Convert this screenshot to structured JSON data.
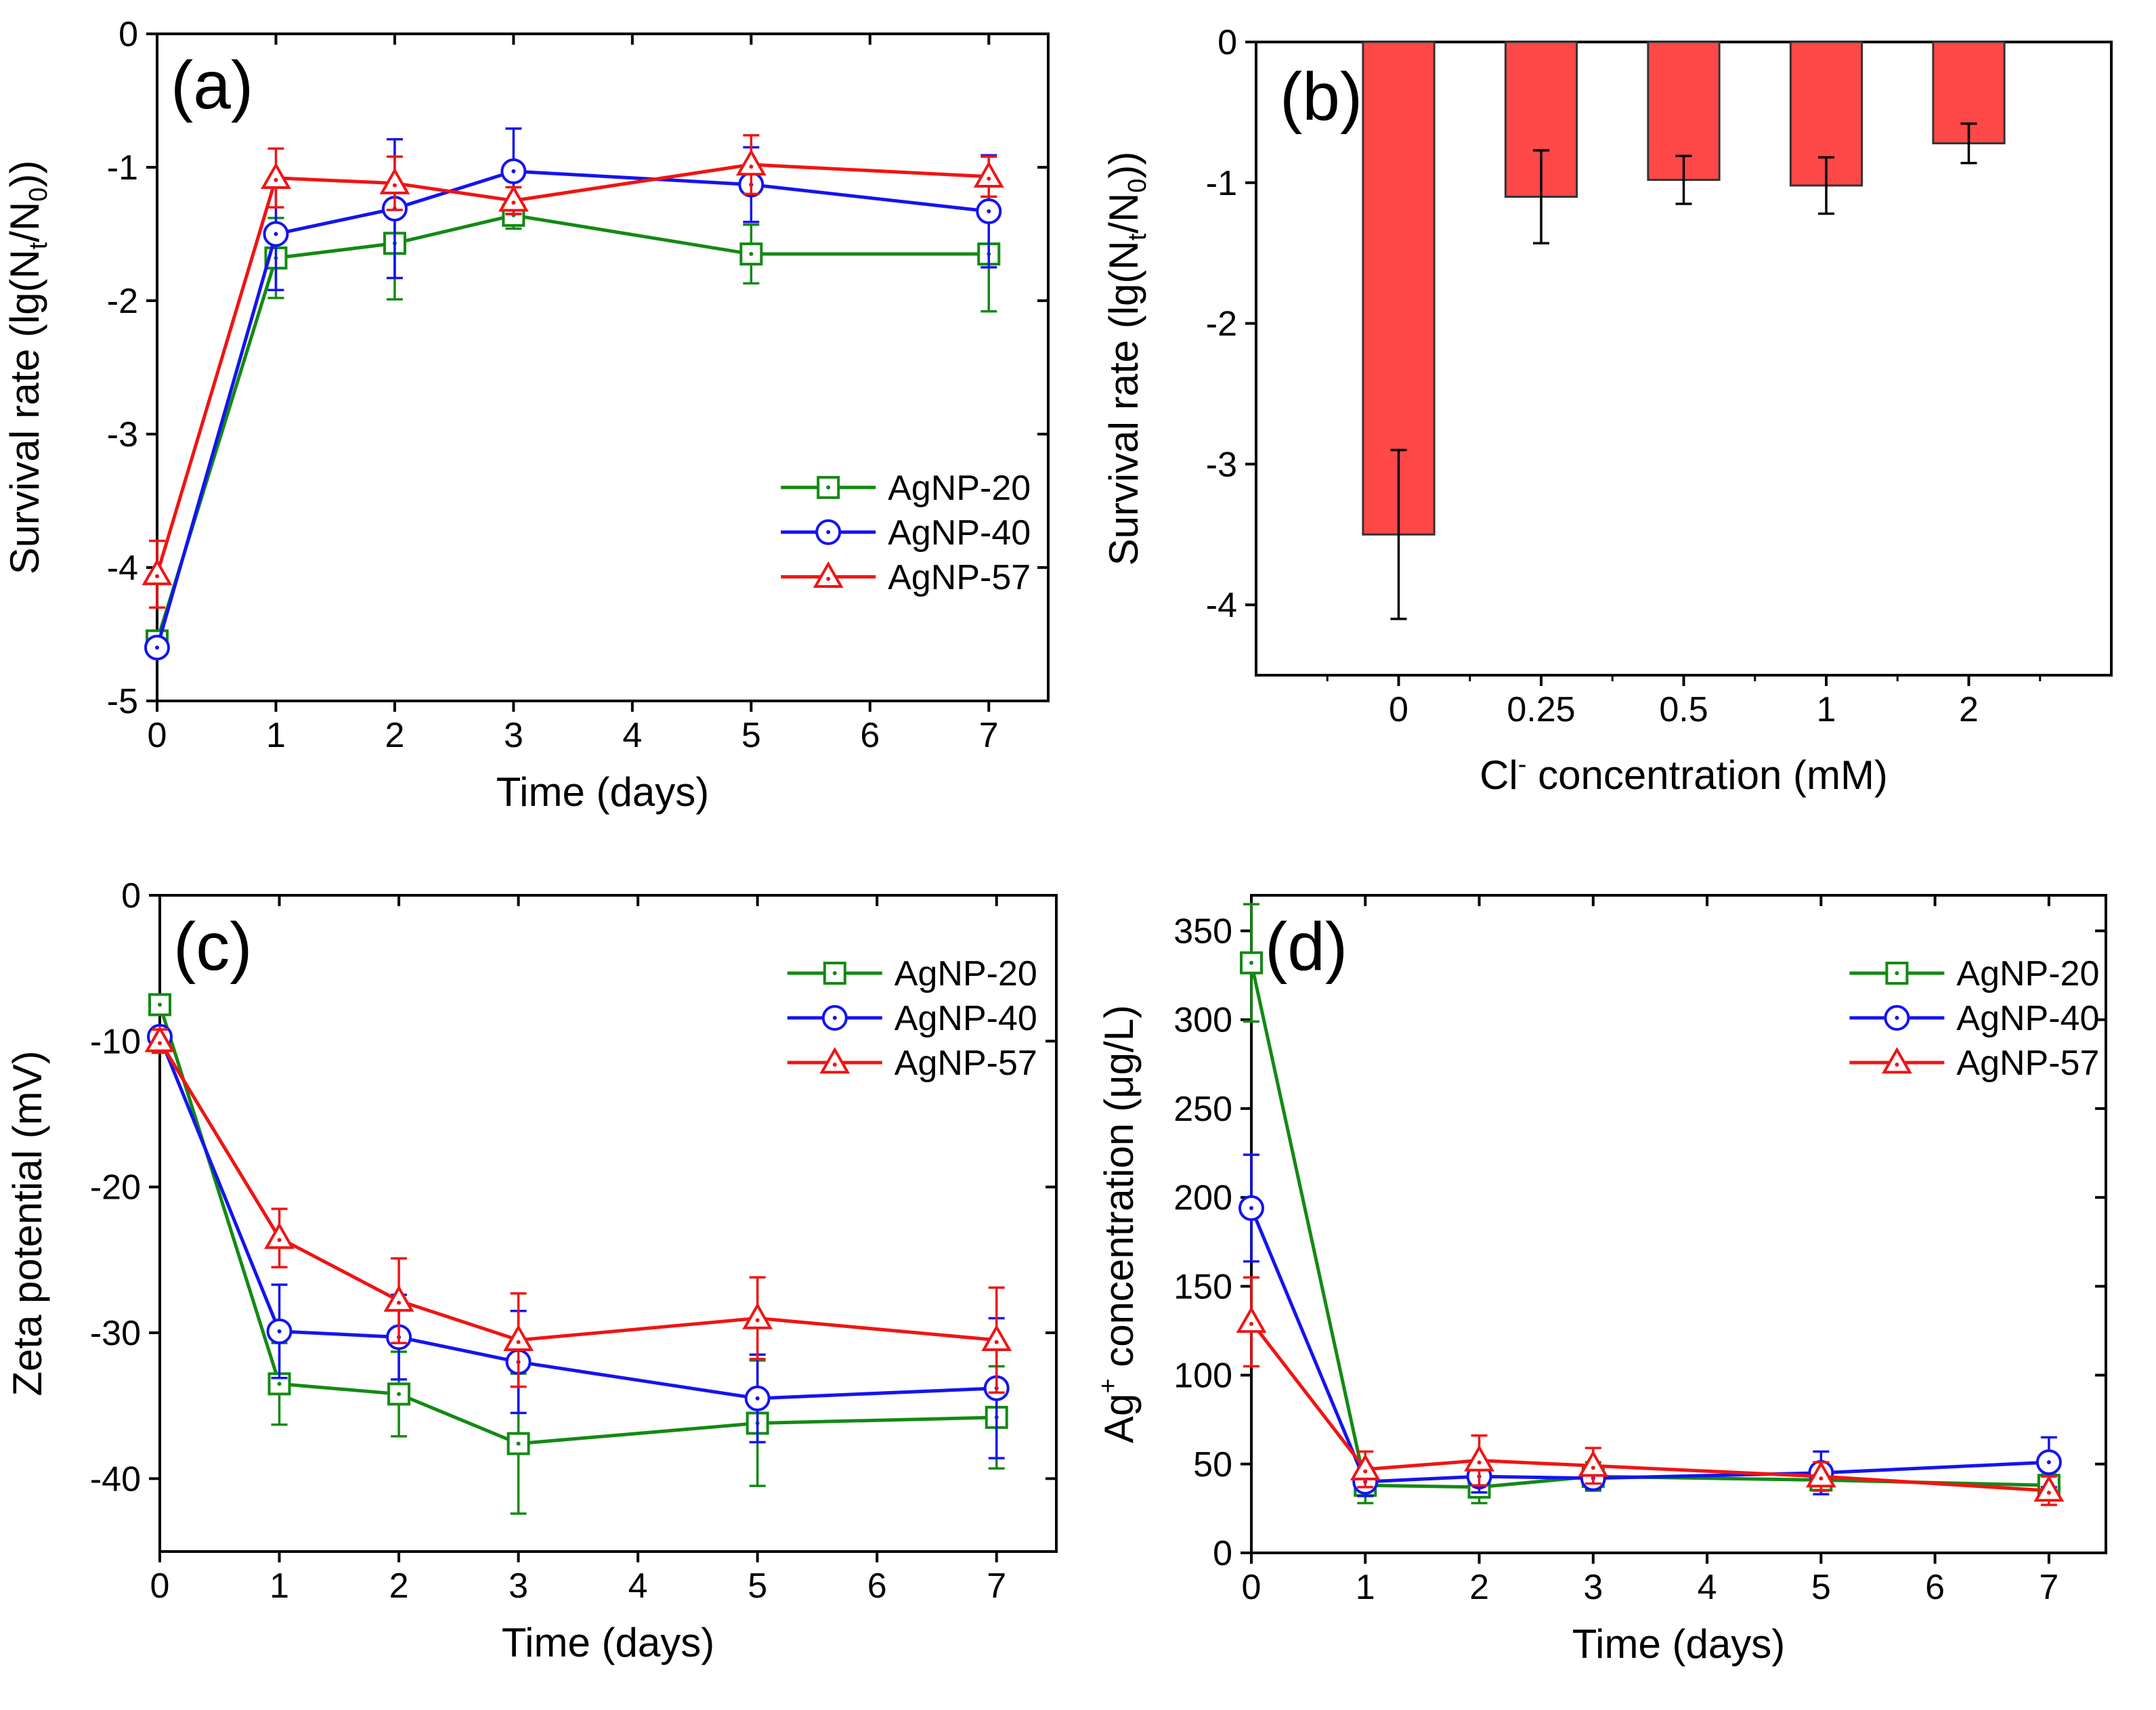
{
  "colors": {
    "AgNP-20": "#138a13",
    "AgNP-40": "#1414f0",
    "AgNP-57": "#f01414",
    "bar_fill": "#ff4848",
    "axis": "#000000"
  },
  "chart_data": [
    {
      "id": "a",
      "panel_label": "(a)",
      "type": "line",
      "xlabel": "Time (days)",
      "ylabel_parts": {
        "prefix": "Survival rate (lg(N",
        "sub1": "t",
        "mid": "/N",
        "sub2": "0",
        "suffix": "))"
      },
      "xlim": [
        0,
        7.5
      ],
      "ylim": [
        -5,
        0
      ],
      "xticks": [
        0,
        1,
        2,
        3,
        4,
        5,
        6,
        7
      ],
      "yticks": [
        0,
        -1,
        -2,
        -3,
        -4,
        -5
      ],
      "legend_position": "bottom-right",
      "series": [
        {
          "name": "AgNP-20",
          "marker": "square",
          "x": [
            0,
            1,
            2,
            3,
            5,
            7
          ],
          "y": [
            -4.55,
            -1.68,
            -1.57,
            -1.36,
            -1.65,
            -1.65
          ],
          "err": [
            0.05,
            0.3,
            0.42,
            0.1,
            0.22,
            0.43
          ]
        },
        {
          "name": "AgNP-40",
          "marker": "circle",
          "x": [
            0,
            1,
            2,
            3,
            5,
            7
          ],
          "y": [
            -4.6,
            -1.5,
            -1.31,
            -1.03,
            -1.13,
            -1.33
          ],
          "err": [
            0.05,
            0.42,
            0.52,
            0.32,
            0.28,
            0.42
          ]
        },
        {
          "name": "AgNP-57",
          "marker": "triangle",
          "x": [
            0,
            1,
            2,
            3,
            5,
            7
          ],
          "y": [
            -4.05,
            -1.08,
            -1.12,
            -1.25,
            -0.98,
            -1.07
          ],
          "err": [
            0.25,
            0.22,
            0.2,
            0.1,
            0.22,
            0.15
          ]
        }
      ]
    },
    {
      "id": "b",
      "panel_label": "(b)",
      "type": "bar",
      "xlabel_parts": {
        "prefix": "Cl",
        "sup": "-",
        "suffix": " concentration (mM)"
      },
      "ylabel_parts": {
        "prefix": "Survival rate (lg(N",
        "sub1": "t",
        "mid": "/N",
        "sub2": "0",
        "suffix": "))"
      },
      "categories": [
        "0",
        "0.25",
        "0.5",
        "1",
        "2"
      ],
      "values": [
        -3.5,
        -1.1,
        -0.98,
        -1.02,
        -0.72
      ],
      "errors": [
        0.6,
        0.33,
        0.17,
        0.2,
        0.14
      ],
      "ylim": [
        -4.5,
        0
      ],
      "yticks": [
        0,
        -1,
        -2,
        -3,
        -4
      ]
    },
    {
      "id": "c",
      "panel_label": "(c)",
      "type": "line",
      "xlabel": "Time (days)",
      "ylabel": "Zeta potential (mV)",
      "xlim": [
        0,
        7.5
      ],
      "ylim": [
        -45,
        0
      ],
      "xticks": [
        0,
        1,
        2,
        3,
        4,
        5,
        6,
        7
      ],
      "yticks": [
        0,
        -10,
        -20,
        -30,
        -40
      ],
      "legend_position": "top-right",
      "series": [
        {
          "name": "AgNP-20",
          "marker": "square",
          "x": [
            0,
            1,
            2,
            3,
            5,
            7
          ],
          "y": [
            -7.5,
            -33.5,
            -34.2,
            -37.6,
            -36.2,
            -35.8
          ],
          "err": [
            0.3,
            2.8,
            2.9,
            4.8,
            4.3,
            3.5
          ]
        },
        {
          "name": "AgNP-40",
          "marker": "circle",
          "x": [
            0,
            1,
            2,
            3,
            5,
            7
          ],
          "y": [
            -9.7,
            -29.9,
            -30.3,
            -32.0,
            -34.5,
            -33.8
          ],
          "err": [
            0.5,
            3.2,
            2.9,
            3.5,
            3.0,
            4.8
          ]
        },
        {
          "name": "AgNP-57",
          "marker": "triangle",
          "x": [
            0,
            1,
            2,
            3,
            5,
            7
          ],
          "y": [
            -10.0,
            -23.5,
            -27.8,
            -30.5,
            -29.0,
            -30.5
          ],
          "err": [
            0.8,
            2.0,
            2.9,
            3.2,
            2.8,
            3.6
          ]
        }
      ]
    },
    {
      "id": "d",
      "panel_label": "(d)",
      "type": "line",
      "xlabel": "Time (days)",
      "ylabel_parts": {
        "prefix": "Ag",
        "sup": "+",
        "suffix": " concentration (μg/L)"
      },
      "xlim": [
        0,
        7.5
      ],
      "ylim": [
        0,
        370
      ],
      "xticks": [
        0,
        1,
        2,
        3,
        4,
        5,
        6,
        7
      ],
      "yticks": [
        0,
        50,
        100,
        150,
        200,
        250,
        300,
        350
      ],
      "legend_position": "top-right",
      "series": [
        {
          "name": "AgNP-20",
          "marker": "square",
          "x": [
            0,
            1,
            2,
            3,
            5,
            7
          ],
          "y": [
            332,
            38,
            37,
            43,
            41,
            38
          ],
          "err": [
            33,
            10,
            9,
            8,
            5,
            6
          ]
        },
        {
          "name": "AgNP-40",
          "marker": "circle",
          "x": [
            0,
            1,
            2,
            3,
            5,
            7
          ],
          "y": [
            194,
            40,
            43,
            42,
            45,
            51
          ],
          "err": [
            30,
            8,
            9,
            6,
            12,
            14
          ]
        },
        {
          "name": "AgNP-57",
          "marker": "triangle",
          "x": [
            0,
            1,
            2,
            3,
            5,
            7
          ],
          "y": [
            130,
            47,
            52,
            49,
            43,
            35
          ],
          "err": [
            25,
            10,
            14,
            10,
            8,
            8
          ]
        }
      ]
    }
  ]
}
